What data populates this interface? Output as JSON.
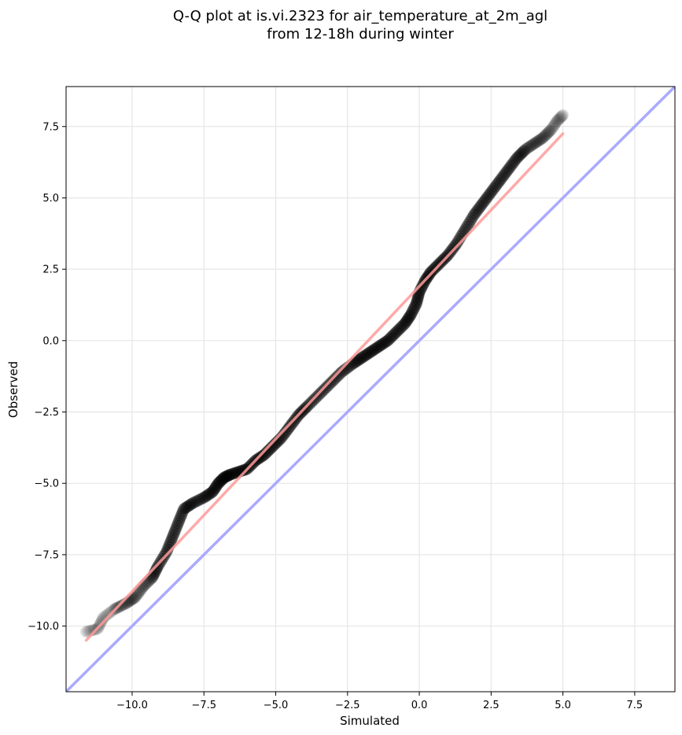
{
  "chart_data": {
    "type": "scatter",
    "title": [
      "Q-Q plot at is.vi.2323 for air_temperature_at_2m_agl",
      "from 12-18h during winter"
    ],
    "xlabel": "Simulated",
    "ylabel": "Observed",
    "xlim": [
      -12.3,
      8.9
    ],
    "ylim": [
      -12.3,
      8.9
    ],
    "xticks": [
      -10.0,
      -7.5,
      -5.0,
      -2.5,
      0.0,
      2.5,
      5.0,
      7.5
    ],
    "yticks": [
      -10.0,
      -7.5,
      -5.0,
      -2.5,
      0.0,
      2.5,
      5.0,
      7.5
    ],
    "xtick_labels": [
      "−10.0",
      "−7.5",
      "−5.0",
      "−2.5",
      "0.0",
      "2.5",
      "5.0",
      "7.5"
    ],
    "ytick_labels": [
      "−10.0",
      "−7.5",
      "−5.0",
      "−2.5",
      "0.0",
      "2.5",
      "5.0",
      "7.5"
    ],
    "grid": true,
    "quantile_curve": {
      "color": "#000000",
      "x": [
        -11.6,
        -11.2,
        -11.0,
        -10.6,
        -10.2,
        -9.9,
        -9.6,
        -9.3,
        -9.1,
        -8.8,
        -8.6,
        -8.4,
        -8.2,
        -7.9,
        -7.5,
        -7.2,
        -7.0,
        -6.8,
        -6.6,
        -6.3,
        -6.0,
        -5.7,
        -5.4,
        -5.1,
        -4.8,
        -4.5,
        -4.2,
        -3.9,
        -3.5,
        -3.1,
        -2.7,
        -2.3,
        -2.0,
        -1.7,
        -1.4,
        -1.1,
        -0.8,
        -0.5,
        -0.3,
        -0.1,
        0.0,
        0.2,
        0.4,
        0.7,
        1.0,
        1.3,
        1.6,
        1.9,
        2.2,
        2.5,
        2.8,
        3.1,
        3.4,
        3.7,
        4.0,
        4.3,
        4.6,
        4.8,
        5.0
      ],
      "y": [
        -10.2,
        -10.1,
        -9.7,
        -9.4,
        -9.2,
        -9.0,
        -8.6,
        -8.3,
        -7.9,
        -7.4,
        -6.9,
        -6.4,
        -5.9,
        -5.7,
        -5.5,
        -5.3,
        -5.0,
        -4.8,
        -4.7,
        -4.6,
        -4.5,
        -4.2,
        -4.0,
        -3.7,
        -3.4,
        -3.0,
        -2.6,
        -2.3,
        -1.9,
        -1.5,
        -1.1,
        -0.8,
        -0.6,
        -0.4,
        -0.2,
        0.0,
        0.3,
        0.6,
        0.9,
        1.3,
        1.7,
        2.1,
        2.4,
        2.7,
        3.0,
        3.4,
        3.9,
        4.4,
        4.8,
        5.2,
        5.6,
        6.0,
        6.4,
        6.7,
        6.9,
        7.1,
        7.4,
        7.7,
        7.9
      ]
    },
    "fit_line": {
      "color": "#ff9a9a",
      "x": [
        -11.6,
        5.0
      ],
      "y": [
        -10.5,
        7.25
      ]
    },
    "identity_line": {
      "color": "#aaaaff",
      "x": [
        -12.3,
        8.9
      ],
      "y": [
        -12.3,
        8.9
      ]
    }
  }
}
